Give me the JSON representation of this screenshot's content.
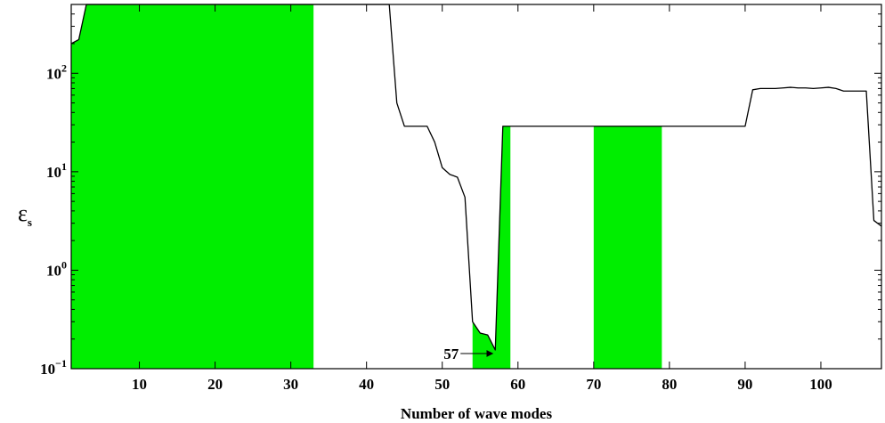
{
  "chart_data": {
    "type": "line",
    "title": "",
    "xlabel": "Number of wave modes",
    "ylabel": {
      "main": "ε",
      "sub": "s"
    },
    "xlim": [
      1,
      108
    ],
    "ylim": [
      0.1,
      500
    ],
    "yscale": "log",
    "grid": false,
    "x_ticks": [
      10,
      20,
      30,
      40,
      50,
      60,
      70,
      80,
      90,
      100
    ],
    "y_ticks": [
      {
        "value": 0.1,
        "base": "10",
        "exp": "−1"
      },
      {
        "value": 1,
        "base": "10",
        "exp": "0"
      },
      {
        "value": 10,
        "base": "10",
        "exp": "1"
      },
      {
        "value": 100,
        "base": "10",
        "exp": "2"
      }
    ],
    "fill_color": "#00ee00",
    "line_color": "#000000",
    "shaded_regions": [
      {
        "x_start": 1,
        "x_end": 33
      },
      {
        "x_start": 54,
        "x_end": 59
      },
      {
        "x_start": 70,
        "x_end": 79
      }
    ],
    "series": [
      {
        "x": [
          1,
          2,
          3,
          43,
          44,
          45,
          48,
          49,
          50,
          51,
          52,
          53,
          54,
          55,
          56,
          57,
          58,
          90,
          91,
          92,
          93,
          94,
          95,
          96,
          97,
          98,
          99,
          100,
          101,
          102,
          103,
          104,
          105,
          106,
          107,
          108
        ],
        "y": [
          200,
          220,
          500,
          500,
          50,
          29,
          29,
          20,
          11,
          9.4,
          8.8,
          5.5,
          0.3,
          0.23,
          0.22,
          0.155,
          29,
          29,
          68,
          70,
          70,
          70,
          71,
          72,
          71,
          71,
          70,
          71,
          72,
          70,
          66,
          66,
          66,
          66,
          3.2,
          2.8
        ]
      }
    ],
    "annotations": [
      {
        "text": "57",
        "x": 57,
        "y": 0.155
      }
    ]
  }
}
